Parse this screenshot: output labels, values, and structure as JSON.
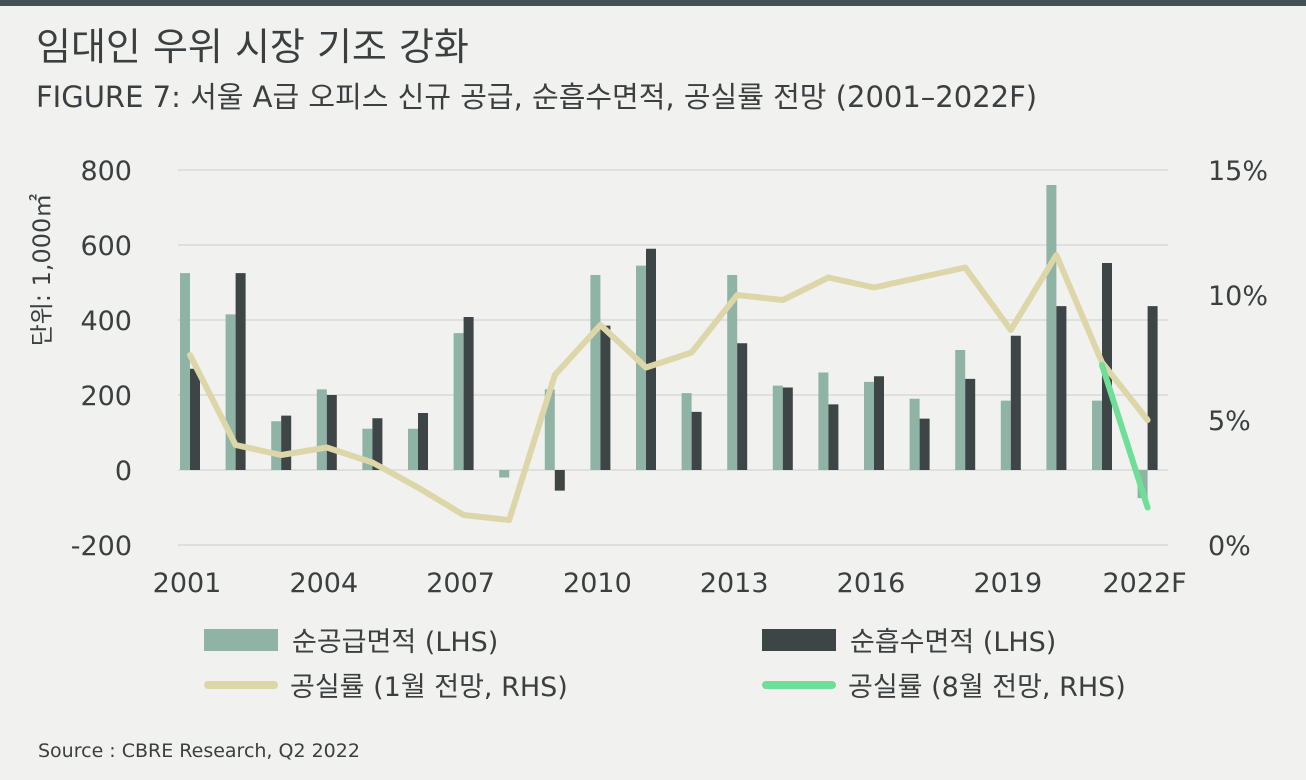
{
  "header": {
    "title": "임대인 우위 시장 기조 강화",
    "subtitle": "FIGURE 7: 서울 A급 오피스 신규 공급, 순흡수면적, 공실률 전망 (2001–2022F)"
  },
  "footer": {
    "source": "Source : CBRE Research, Q2 2022"
  },
  "chart_data": {
    "type": "bar",
    "title": "FIGURE 7: 서울 A급 오피스 신규 공급, 순흡수면적, 공실률 전망 (2001–2022F)",
    "ylabel": "단위: 1,000㎡",
    "ylim": [
      -200,
      800
    ],
    "y_ticks": [
      "-200",
      "0",
      "200",
      "400",
      "600",
      "800"
    ],
    "y2lim": [
      0,
      15
    ],
    "y2_ticks": [
      "0%",
      "5%",
      "10%",
      "15%"
    ],
    "categories": [
      "2001",
      "2002",
      "2003",
      "2004",
      "2005",
      "2006",
      "2007",
      "2008",
      "2009",
      "2010",
      "2011",
      "2012",
      "2013",
      "2014",
      "2015",
      "2016",
      "2017",
      "2018",
      "2019",
      "2020",
      "2021",
      "2022F"
    ],
    "x_tick_labels": [
      "2001",
      "2004",
      "2007",
      "2010",
      "2013",
      "2016",
      "2019",
      "2022F"
    ],
    "grid": true,
    "legend_position": "bottom",
    "series": [
      {
        "name": "순공급면적 (LHS)",
        "type": "bar",
        "axis": "left",
        "color": "#8fb3a5",
        "values": [
          525,
          415,
          130,
          215,
          110,
          110,
          365,
          -20,
          215,
          520,
          545,
          205,
          520,
          225,
          260,
          235,
          190,
          320,
          185,
          760,
          185,
          -75
        ]
      },
      {
        "name": "순흡수면적 (LHS)",
        "type": "bar",
        "axis": "left",
        "color": "#3d4547",
        "values": [
          270,
          525,
          145,
          200,
          138,
          152,
          408,
          null,
          -55,
          385,
          590,
          155,
          338,
          220,
          175,
          250,
          137,
          243,
          358,
          437,
          552,
          437
        ]
      },
      {
        "name": "공실률 (1월 전망, RHS)",
        "type": "line",
        "axis": "right",
        "color": "#dcd6a8",
        "values": [
          7.6,
          4.0,
          3.6,
          3.9,
          3.3,
          2.3,
          1.2,
          1.0,
          6.8,
          8.8,
          7.1,
          7.7,
          10.0,
          9.8,
          10.7,
          10.3,
          10.7,
          11.1,
          8.6,
          11.6,
          7.3,
          5.0
        ]
      },
      {
        "name": "공실률 (8월 전망, RHS)",
        "type": "line",
        "axis": "right",
        "color": "#6fdf98",
        "values": [
          null,
          null,
          null,
          null,
          null,
          null,
          null,
          null,
          null,
          null,
          null,
          null,
          null,
          null,
          null,
          null,
          null,
          null,
          null,
          null,
          7.2,
          1.5
        ]
      }
    ]
  }
}
